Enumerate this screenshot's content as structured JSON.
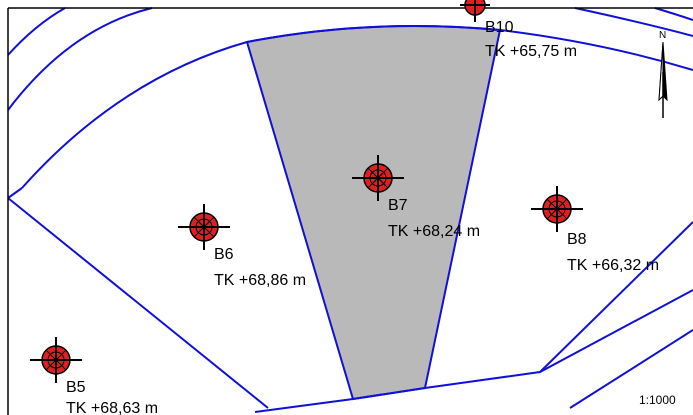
{
  "map": {
    "boreholes": [
      {
        "id": "B10",
        "elevation": "TK +65,75 m"
      },
      {
        "id": "B7",
        "elevation": "TK +68,24 m"
      },
      {
        "id": "B6",
        "elevation": "TK +68,86 m"
      },
      {
        "id": "B8",
        "elevation": "TK +66,32 m"
      },
      {
        "id": "B5",
        "elevation": "TK +68,63 m"
      }
    ],
    "north_label": "N",
    "scale": "1:1000"
  },
  "colors": {
    "boundary_lines": "#1010d8",
    "highlighted_parcel": "#b9b9b9",
    "borehole_fill": "#e02020",
    "crosshair": "#000000"
  },
  "icons": {
    "borehole": "borehole-crosshair-icon",
    "north": "north-arrow-icon"
  }
}
